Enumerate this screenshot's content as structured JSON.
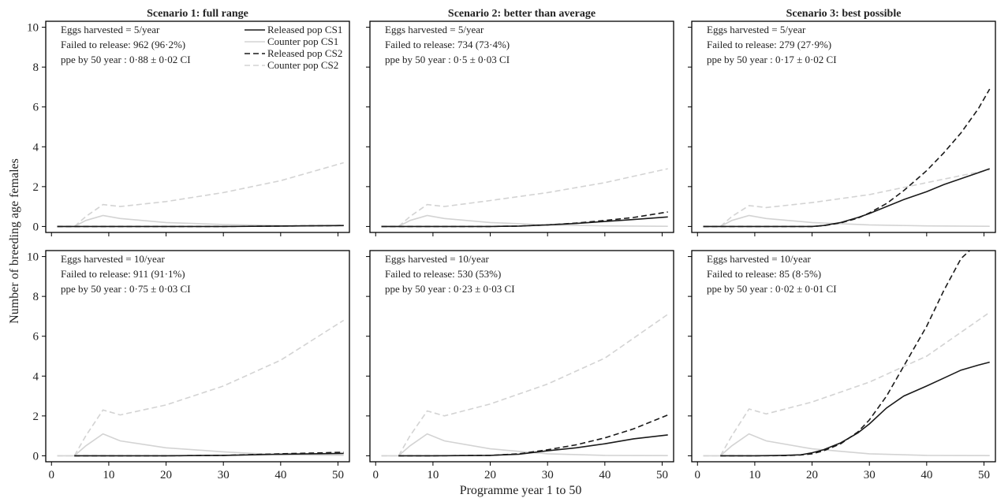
{
  "figure": {
    "xlabel": "Programme year 1 to 50",
    "ylabel": "Number of breeding age females",
    "colors": {
      "released": "#1a1a1a",
      "counter": "#d3d3d3",
      "frame": "#000000"
    }
  },
  "legend": [
    {
      "label": "Released pop CS1",
      "color": "#1a1a1a",
      "dash": "solid"
    },
    {
      "label": "Counter pop CS1",
      "color": "#d3d3d3",
      "dash": "solid"
    },
    {
      "label": "Released pop CS2",
      "color": "#1a1a1a",
      "dash": "dashed"
    },
    {
      "label": "Counter pop CS2",
      "color": "#d3d3d3",
      "dash": "dashed"
    }
  ],
  "chart_data": [
    {
      "type": "line",
      "row": 0,
      "col": 0,
      "title": "Scenario 1: full range",
      "annotations": [
        "Eggs harvested = 5/year",
        "Failed to release: 962 (96·2%)",
        "ppe by 50 year : 0·88 ± 0·02 CI"
      ],
      "xlim": [
        -1,
        52
      ],
      "ylim": [
        -0.3,
        10.3
      ],
      "xticks": [
        "0",
        "10",
        "20",
        "30",
        "40",
        "50"
      ],
      "yticks": [
        "0",
        "2",
        "4",
        "6",
        "8",
        "10"
      ],
      "show_xticklabels": false,
      "show_yticklabels": true,
      "show_legend": true,
      "series": [
        {
          "name": "Released pop CS1",
          "x": [
            1,
            4,
            10,
            20,
            30,
            40,
            51
          ],
          "y": [
            0,
            0,
            0,
            0,
            0,
            0.02,
            0.05
          ]
        },
        {
          "name": "Counter pop CS1",
          "x": [
            1,
            4,
            6,
            9,
            12,
            20,
            30,
            40,
            51
          ],
          "y": [
            0,
            0,
            0.3,
            0.55,
            0.4,
            0.2,
            0.1,
            0.05,
            0.03
          ]
        },
        {
          "name": "Released pop CS2",
          "x": [
            1,
            4,
            10,
            20,
            30,
            40,
            51
          ],
          "y": [
            0,
            0,
            0,
            0,
            0,
            0.02,
            0.05
          ]
        },
        {
          "name": "Counter pop CS2",
          "x": [
            1,
            4,
            6,
            9,
            12,
            20,
            30,
            40,
            51
          ],
          "y": [
            0,
            0,
            0.5,
            1.1,
            1.0,
            1.25,
            1.7,
            2.3,
            3.2
          ]
        }
      ]
    },
    {
      "type": "line",
      "row": 0,
      "col": 1,
      "title": "Scenario 2: better than average",
      "annotations": [
        "Eggs harvested = 5/year",
        "Failed to release: 734 (73·4%)",
        "ppe by 50 year : 0·5 ± 0·03 CI"
      ],
      "xlim": [
        -1,
        52
      ],
      "ylim": [
        -0.3,
        10.3
      ],
      "xticks": [
        "0",
        "10",
        "20",
        "30",
        "40",
        "50"
      ],
      "yticks": [
        "0",
        "2",
        "4",
        "6",
        "8",
        "10"
      ],
      "show_xticklabels": false,
      "show_yticklabels": false,
      "show_legend": false,
      "series": [
        {
          "name": "Released pop CS1",
          "x": [
            1,
            4,
            10,
            20,
            25,
            30,
            35,
            40,
            45,
            51
          ],
          "y": [
            0,
            0,
            0,
            0,
            0.02,
            0.08,
            0.15,
            0.25,
            0.35,
            0.48
          ]
        },
        {
          "name": "Counter pop CS1",
          "x": [
            1,
            4,
            6,
            9,
            12,
            20,
            30,
            40,
            51
          ],
          "y": [
            0,
            0,
            0.3,
            0.55,
            0.4,
            0.2,
            0.08,
            0.03,
            0.01
          ]
        },
        {
          "name": "Released pop CS2",
          "x": [
            1,
            4,
            10,
            20,
            25,
            30,
            35,
            40,
            45,
            51
          ],
          "y": [
            0,
            0,
            0,
            0,
            0.02,
            0.08,
            0.17,
            0.3,
            0.45,
            0.73
          ]
        },
        {
          "name": "Counter pop CS2",
          "x": [
            1,
            4,
            6,
            9,
            12,
            20,
            30,
            40,
            51
          ],
          "y": [
            0,
            0,
            0.5,
            1.1,
            1.0,
            1.3,
            1.7,
            2.2,
            2.9
          ]
        }
      ]
    },
    {
      "type": "line",
      "row": 0,
      "col": 2,
      "title": "Scenario 3: best possible",
      "annotations": [
        "Eggs harvested = 5/year",
        "Failed to release: 279 (27·9%)",
        "ppe by 50 year : 0·17 ± 0·02 CI"
      ],
      "xlim": [
        -1,
        52
      ],
      "ylim": [
        -0.3,
        10.3
      ],
      "xticks": [
        "0",
        "10",
        "20",
        "30",
        "40",
        "50"
      ],
      "yticks": [
        "0",
        "2",
        "4",
        "6",
        "8",
        "10"
      ],
      "show_xticklabels": false,
      "show_yticklabels": false,
      "show_legend": false,
      "series": [
        {
          "name": "Released pop CS1",
          "x": [
            1,
            4,
            10,
            15,
            20,
            22,
            25,
            28,
            30,
            33,
            36,
            40,
            43,
            46,
            49,
            51
          ],
          "y": [
            0,
            0,
            0,
            0,
            0,
            0.05,
            0.2,
            0.45,
            0.65,
            1.0,
            1.35,
            1.75,
            2.1,
            2.4,
            2.7,
            2.9
          ]
        },
        {
          "name": "Counter pop CS1",
          "x": [
            1,
            4,
            6,
            9,
            12,
            20,
            30,
            40,
            51
          ],
          "y": [
            0,
            0,
            0.3,
            0.55,
            0.4,
            0.2,
            0.08,
            0.03,
            0.01
          ]
        },
        {
          "name": "Released pop CS2",
          "x": [
            1,
            4,
            10,
            15,
            20,
            22,
            25,
            28,
            30,
            33,
            36,
            40,
            43,
            46,
            49,
            51
          ],
          "y": [
            0,
            0,
            0,
            0,
            0,
            0.04,
            0.18,
            0.42,
            0.68,
            1.15,
            1.8,
            2.8,
            3.7,
            4.7,
            5.9,
            6.9
          ]
        },
        {
          "name": "Counter pop CS2",
          "x": [
            1,
            4,
            6,
            9,
            12,
            20,
            30,
            40,
            51
          ],
          "y": [
            0,
            0,
            0.5,
            1.05,
            0.95,
            1.2,
            1.6,
            2.2,
            2.85
          ]
        }
      ]
    },
    {
      "type": "line",
      "row": 1,
      "col": 0,
      "title": "",
      "annotations": [
        "Eggs harvested = 10/year",
        "Failed to release: 911 (91·1%)",
        "ppe by 50 year : 0·75 ± 0·03 CI"
      ],
      "xlim": [
        -1,
        52
      ],
      "ylim": [
        -0.3,
        10.3
      ],
      "xticks": [
        "0",
        "10",
        "20",
        "30",
        "40",
        "50"
      ],
      "yticks": [
        "0",
        "2",
        "4",
        "6",
        "8",
        "10"
      ],
      "show_xticklabels": true,
      "show_yticklabels": true,
      "show_legend": false,
      "series": [
        {
          "name": "Released pop CS1",
          "x": [
            4,
            10,
            20,
            30,
            35,
            40,
            45,
            51
          ],
          "y": [
            0,
            0,
            0,
            0.02,
            0.05,
            0.08,
            0.1,
            0.12
          ]
        },
        {
          "name": "Counter pop CS1",
          "x": [
            1,
            4,
            6,
            9,
            12,
            20,
            30,
            40,
            51
          ],
          "y": [
            0,
            0,
            0.5,
            1.1,
            0.75,
            0.4,
            0.2,
            0.05,
            0.03
          ]
        },
        {
          "name": "Released pop CS2",
          "x": [
            4,
            10,
            20,
            30,
            35,
            40,
            45,
            51
          ],
          "y": [
            0,
            0,
            0,
            0.02,
            0.06,
            0.1,
            0.13,
            0.18
          ]
        },
        {
          "name": "Counter pop CS2",
          "x": [
            1,
            4,
            6,
            9,
            12,
            20,
            30,
            40,
            51
          ],
          "y": [
            0,
            0,
            1.0,
            2.3,
            2.05,
            2.55,
            3.5,
            4.8,
            6.8
          ]
        }
      ]
    },
    {
      "type": "line",
      "row": 1,
      "col": 1,
      "title": "",
      "annotations": [
        "Eggs harvested = 10/year",
        "Failed to release: 530 (53%)",
        "ppe by 50 year : 0·23 ± 0·03 CI"
      ],
      "xlim": [
        -1,
        52
      ],
      "ylim": [
        -0.3,
        10.3
      ],
      "xticks": [
        "0",
        "10",
        "20",
        "30",
        "40",
        "50"
      ],
      "yticks": [
        "0",
        "2",
        "4",
        "6",
        "8",
        "10"
      ],
      "show_xticklabels": true,
      "show_yticklabels": false,
      "show_legend": false,
      "series": [
        {
          "name": "Released pop CS1",
          "x": [
            4,
            10,
            20,
            25,
            30,
            35,
            40,
            45,
            51
          ],
          "y": [
            0,
            0,
            0.02,
            0.08,
            0.25,
            0.4,
            0.6,
            0.85,
            1.05
          ]
        },
        {
          "name": "Counter pop CS1",
          "x": [
            1,
            4,
            6,
            9,
            12,
            20,
            30,
            40,
            51
          ],
          "y": [
            0,
            0,
            0.5,
            1.1,
            0.75,
            0.35,
            0.1,
            0.02,
            0.01
          ]
        },
        {
          "name": "Released pop CS2",
          "x": [
            4,
            10,
            20,
            25,
            30,
            35,
            40,
            45,
            51
          ],
          "y": [
            0,
            0,
            0.02,
            0.1,
            0.3,
            0.55,
            0.9,
            1.35,
            2.05
          ]
        },
        {
          "name": "Counter pop CS2",
          "x": [
            1,
            4,
            6,
            9,
            12,
            20,
            30,
            40,
            51
          ],
          "y": [
            0,
            0,
            1.0,
            2.25,
            2.0,
            2.6,
            3.6,
            4.9,
            7.1
          ]
        }
      ]
    },
    {
      "type": "line",
      "row": 1,
      "col": 2,
      "title": "",
      "annotations": [
        "Eggs harvested = 10/year",
        "Failed to release: 85 (8·5%)",
        "ppe by 50 year : 0·02 ± 0·01 CI"
      ],
      "xlim": [
        -1,
        52
      ],
      "ylim": [
        -0.3,
        10.3
      ],
      "xticks": [
        "0",
        "10",
        "20",
        "30",
        "40",
        "50"
      ],
      "yticks": [
        "0",
        "2",
        "4",
        "6",
        "8",
        "10"
      ],
      "show_xticklabels": true,
      "show_yticklabels": false,
      "show_legend": false,
      "series": [
        {
          "name": "Released pop CS1",
          "x": [
            4,
            10,
            15,
            18,
            20,
            22,
            25,
            28,
            30,
            33,
            36,
            40,
            43,
            46,
            49,
            51
          ],
          "y": [
            0,
            0,
            0.02,
            0.05,
            0.15,
            0.3,
            0.65,
            1.15,
            1.6,
            2.4,
            3.0,
            3.5,
            3.9,
            4.3,
            4.55,
            4.7
          ]
        },
        {
          "name": "Counter pop CS1",
          "x": [
            1,
            4,
            6,
            9,
            12,
            20,
            30,
            40,
            51
          ],
          "y": [
            0,
            0,
            0.5,
            1.1,
            0.75,
            0.35,
            0.1,
            0.02,
            0.01
          ]
        },
        {
          "name": "Released pop CS2",
          "x": [
            4,
            10,
            15,
            18,
            20,
            22,
            25,
            28,
            30,
            33,
            36,
            40,
            43,
            46,
            47.5
          ],
          "y": [
            0,
            0,
            0.01,
            0.04,
            0.1,
            0.25,
            0.6,
            1.2,
            1.8,
            3.0,
            4.5,
            6.5,
            8.3,
            9.9,
            10.3
          ]
        },
        {
          "name": "Counter pop CS2",
          "x": [
            1,
            4,
            6,
            9,
            12,
            20,
            30,
            40,
            51
          ],
          "y": [
            0,
            0,
            1.0,
            2.35,
            2.1,
            2.7,
            3.7,
            5.0,
            7.2
          ]
        }
      ]
    }
  ]
}
